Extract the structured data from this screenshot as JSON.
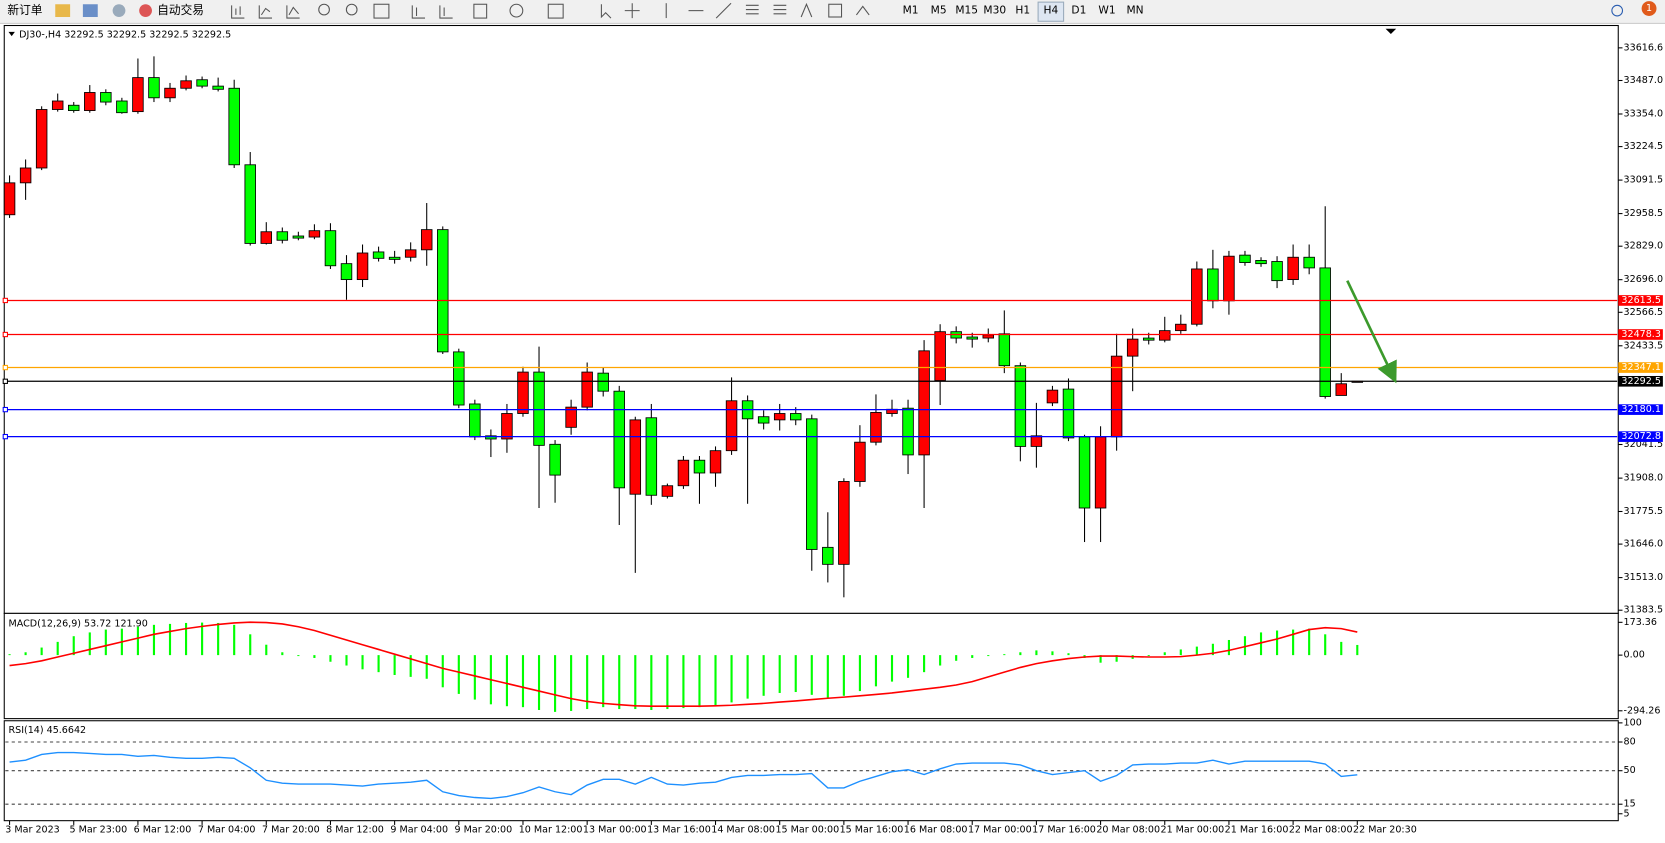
{
  "toolbar": {
    "new_order": "新订单",
    "auto_trading": "自动交易",
    "timeframes": [
      "M1",
      "M5",
      "M15",
      "M30",
      "H1",
      "H4",
      "D1",
      "W1",
      "MN"
    ],
    "notifications": 1
  },
  "chart_data": [
    {
      "type": "candlestick",
      "title": "DJ30-,H4 32292.5 32292.5 32292.5 32292.5",
      "x_labels": [
        "3 Mar 2023",
        "5 Mar 23:00",
        "6 Mar 12:00",
        "7 Mar 04:00",
        "7 Mar 20:00",
        "8 Mar 12:00",
        "9 Mar 04:00",
        "9 Mar 20:00",
        "10 Mar 12:00",
        "13 Mar 00:00",
        "13 Mar 16:00",
        "14 Mar 08:00",
        "15 Mar 00:00",
        "15 Mar 16:00",
        "16 Mar 08:00",
        "17 Mar 00:00",
        "17 Mar 16:00",
        "20 Mar 08:00",
        "21 Mar 00:00",
        "21 Mar 16:00",
        "22 Mar 08:00",
        "22 Mar 20:30"
      ],
      "open": [
        32953.9,
        33080.6,
        33139.6,
        33371.8,
        33388.7,
        33367.6,
        33439.4,
        33405.6,
        33363.4,
        33498.5,
        33418.3,
        33456.2,
        33490.0,
        33464.7,
        33456.2,
        33152.3,
        32840.0,
        32886.4,
        32869.5,
        32865.3,
        32890.6,
        32759.7,
        32696.4,
        32806.2,
        32785.1,
        32785.1,
        32814.6,
        32894.8,
        32409.3,
        32202.5,
        32076.0,
        32063.4,
        32164.6,
        32329.1,
        32042.3,
        32109.7,
        32189.9,
        32324.9,
        32253.2,
        31844.1,
        32147.7,
        31835.7,
        31877.8,
        31979.1,
        31928.4,
        32017.0,
        32215.2,
        32151.9,
        32139.3,
        32164.6,
        32143.5,
        31633.1,
        31565.6,
        31894.7,
        32050.7,
        32164.6,
        32185.7,
        32000.2,
        32295.4,
        32489.5,
        32468.4,
        32464.2,
        32481.1,
        32354.5,
        32033.9,
        32206.8,
        32261.6,
        32071.8,
        31789.3,
        32071.8,
        32392.4,
        32464.2,
        32455.8,
        32493.7,
        32519.1,
        32738.6,
        32612.0,
        32793.5,
        32772.4,
        32768.2,
        32696.4,
        32785.1,
        32742.8,
        32236.3,
        32292.5
      ],
      "high": [
        33110.1,
        33173.4,
        33384.5,
        33435.1,
        33401.4,
        33468.9,
        33452.0,
        33418.3,
        33574.4,
        33582.9,
        33477.3,
        33506.9,
        33502.7,
        33498.5,
        33490.0,
        33202.9,
        32924.4,
        32903.3,
        32886.4,
        32916.0,
        32920.2,
        32793.5,
        32835.7,
        32827.3,
        32810.4,
        32844.2,
        33000.4,
        32907.5,
        32422.0,
        32219.4,
        32101.3,
        32202.5,
        32350.2,
        32430.4,
        32059.1,
        32219.4,
        32367.1,
        32346.0,
        32274.3,
        32151.9,
        32202.5,
        31886.3,
        31995.9,
        31995.9,
        32033.9,
        32308.0,
        32236.3,
        32177.2,
        32202.5,
        32189.9,
        32160.4,
        31772.4,
        31907.4,
        32118.2,
        32240.5,
        32219.4,
        32219.4,
        32455.8,
        32519.1,
        32510.6,
        32485.3,
        32502.2,
        32574.0,
        32367.1,
        32206.8,
        32274.3,
        32303.8,
        32080.2,
        32113.9,
        32481.1,
        32502.2,
        32485.3,
        32548.6,
        32557.1,
        32768.2,
        32814.6,
        32810.4,
        32810.4,
        32785.1,
        32789.3,
        32835.7,
        32835.7,
        32987.7,
        32324.9,
        32292.5
      ],
      "low": [
        32941.3,
        33013.0,
        33131.2,
        33363.4,
        33359.2,
        33359.2,
        33388.7,
        33355.0,
        33355.0,
        33401.4,
        33401.4,
        33447.8,
        33456.2,
        33443.6,
        33139.6,
        32831.5,
        32835.7,
        32840.0,
        32852.6,
        32856.8,
        32738.6,
        32616.2,
        32666.8,
        32768.2,
        32759.7,
        32768.2,
        32751.3,
        32400.9,
        32185.7,
        32059.1,
        31991.7,
        32008.6,
        32151.9,
        31789.3,
        31810.3,
        32080.2,
        32177.2,
        32232.1,
        31721.7,
        31531.8,
        31801.9,
        31827.2,
        31865.2,
        31806.1,
        31873.6,
        32000.2,
        31806.1,
        32101.3,
        32097.1,
        32118.2,
        31540.3,
        31493.8,
        31434.7,
        31873.6,
        32038.1,
        32151.9,
        31924.2,
        31789.3,
        32198.3,
        32443.1,
        32426.2,
        32447.3,
        32324.9,
        31974.8,
        31949.5,
        32194.1,
        32054.9,
        31654.2,
        31654.2,
        32017.0,
        32253.2,
        32438.9,
        32447.3,
        32481.1,
        32510.6,
        32582.4,
        32557.1,
        32751.3,
        32747.1,
        32662.6,
        32675.3,
        32717.5,
        32223.6,
        32236.3,
        32292.5
      ],
      "close": [
        33080.6,
        33139.6,
        33371.8,
        33405.6,
        33367.6,
        33439.4,
        33401.4,
        33359.2,
        33498.5,
        33418.3,
        33456.2,
        33485.8,
        33464.7,
        33452.0,
        33152.3,
        32840.0,
        32886.4,
        32852.6,
        32861.1,
        32890.6,
        32751.3,
        32696.4,
        32802.0,
        32780.8,
        32776.6,
        32814.6,
        32894.8,
        32409.3,
        32198.3,
        32071.8,
        32063.4,
        32164.6,
        32329.1,
        32038.1,
        31920.0,
        32189.9,
        32329.1,
        32253.2,
        31869.4,
        32139.3,
        31839.9,
        31877.8,
        31979.1,
        31928.4,
        32017.0,
        32215.2,
        32143.5,
        32126.6,
        32164.6,
        32139.3,
        31624.7,
        31565.6,
        31894.7,
        32050.7,
        32168.8,
        32181.4,
        32000.2,
        32413.5,
        32489.5,
        32464.2,
        32460.0,
        32476.9,
        32354.5,
        32033.9,
        32076.0,
        32257.4,
        32067.6,
        31789.3,
        32071.8,
        32392.4,
        32460.0,
        32455.8,
        32493.7,
        32519.1,
        32738.6,
        32612.0,
        32789.3,
        32764.0,
        32759.7,
        32692.2,
        32785.1,
        32742.8,
        32232.1,
        32282.7,
        32292.5
      ],
      "up_color": "#ff0000",
      "down_color": "#00ff00",
      "ylim": [
        31375.1,
        33696.9
      ],
      "yticks": [
        33616.6,
        {
          "value": 33487.0,
          "label": "33487.0"
        },
        {
          "value": 33354.0,
          "label": "33354.0"
        },
        33224.5,
        33091.5,
        32958.5,
        {
          "value": 32829.0,
          "label": "32829.0"
        },
        {
          "value": 32696.0,
          "label": "32696.0"
        },
        32566.5,
        32433.5,
        32041.5,
        {
          "value": 31908.0,
          "label": "31908.0"
        },
        31775.5,
        {
          "value": 31646.0,
          "label": "31646.0"
        },
        {
          "value": 31513.0,
          "label": "31513.0"
        },
        31383.5
      ],
      "levels": [
        {
          "value": 32613.5,
          "color": "#ff0000"
        },
        {
          "value": 32478.3,
          "color": "#ff0000"
        },
        {
          "value": 32347.1,
          "color": "#ffa500"
        },
        {
          "value": 32292.5,
          "color": "#000000"
        },
        {
          "value": 32180.1,
          "color": "#0000ff"
        },
        {
          "value": 32072.8,
          "color": "#0000ff"
        }
      ]
    },
    {
      "type": "macd",
      "title": "MACD(12,26,9) 53.72 121.90",
      "histogram": [
        5,
        15,
        40,
        70,
        100,
        120,
        135,
        140,
        150,
        160,
        165,
        170,
        172,
        170,
        160,
        110,
        55,
        15,
        -5,
        -15,
        -35,
        -55,
        -75,
        -90,
        -105,
        -115,
        -125,
        -170,
        -205,
        -235,
        -260,
        -270,
        -275,
        -290,
        -300,
        -295,
        -285,
        -275,
        -285,
        -285,
        -290,
        -285,
        -280,
        -275,
        -270,
        -250,
        -230,
        -215,
        -200,
        -195,
        -210,
        -225,
        -215,
        -190,
        -165,
        -140,
        -120,
        -90,
        -55,
        -30,
        -15,
        -5,
        5,
        15,
        25,
        20,
        10,
        -15,
        -40,
        -35,
        -20,
        -5,
        15,
        30,
        45,
        60,
        80,
        100,
        120,
        130,
        135,
        140,
        110,
        70,
        53.72
      ],
      "signal": [
        -55,
        -45,
        -30,
        -10,
        10,
        30,
        50,
        70,
        90,
        110,
        125,
        140,
        152,
        162,
        170,
        174,
        172,
        165,
        150,
        130,
        105,
        80,
        55,
        30,
        5,
        -20,
        -45,
        -70,
        -90,
        -110,
        -130,
        -150,
        -170,
        -190,
        -210,
        -230,
        -245,
        -255,
        -262,
        -268,
        -270,
        -270,
        -270,
        -270,
        -268,
        -265,
        -260,
        -255,
        -248,
        -242,
        -235,
        -228,
        -222,
        -215,
        -208,
        -200,
        -190,
        -180,
        -170,
        -158,
        -140,
        -115,
        -90,
        -65,
        -45,
        -30,
        -18,
        -10,
        -5,
        -5,
        -8,
        -10,
        -10,
        -8,
        0,
        10,
        25,
        45,
        65,
        85,
        110,
        135,
        145,
        140,
        121.9
      ],
      "histogram_color": "#00ff00",
      "signal_color": "#ff0000",
      "ylim": [
        -330,
        215
      ],
      "yticks": [
        173.36,
        {
          "value": 0,
          "label": "0.00"
        },
        -294.26
      ]
    },
    {
      "type": "line",
      "title": "RSI(14) 45.6642",
      "values": [
        59,
        61,
        67,
        69,
        69,
        68,
        67,
        67,
        65,
        66,
        64,
        63,
        63,
        64,
        63,
        53,
        40,
        37,
        36,
        36,
        36,
        35,
        34,
        36,
        37,
        38,
        40,
        28,
        24,
        22,
        21,
        23,
        27,
        33,
        28,
        25,
        35,
        41,
        41,
        36,
        43,
        36,
        35,
        37,
        38,
        43,
        45,
        45,
        46,
        46,
        47,
        32,
        32,
        39,
        44,
        49,
        51,
        46,
        52,
        57,
        58,
        58,
        58,
        56,
        50,
        46,
        48,
        50,
        39,
        45,
        56,
        57,
        57,
        58,
        58,
        61,
        57,
        60,
        60,
        60,
        60,
        60,
        57,
        44,
        45.6642
      ],
      "color": "#1e90ff",
      "ylim": [
        0,
        100
      ],
      "yticks": [
        100,
        80,
        50,
        15,
        5
      ],
      "levels": [
        80,
        50,
        15
      ]
    }
  ]
}
